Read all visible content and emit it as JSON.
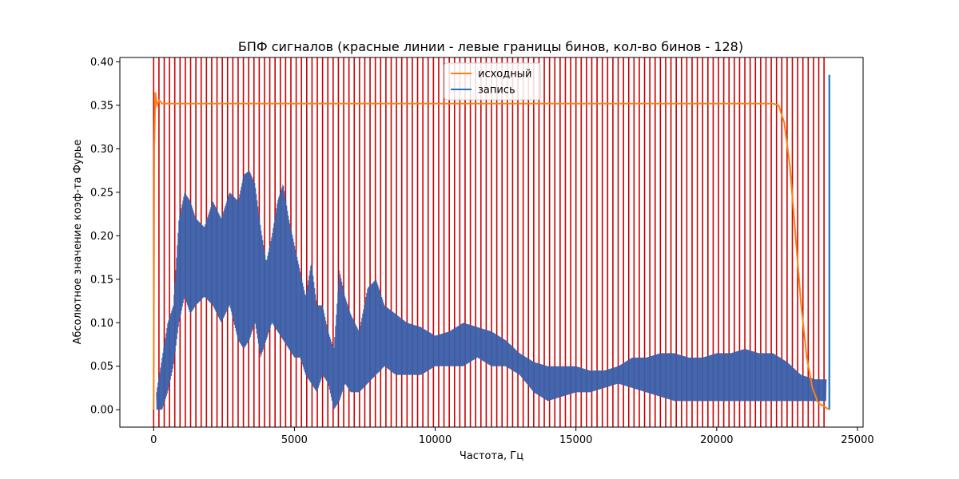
{
  "chart_data": {
    "type": "line",
    "title": "БПФ сигналов (красные линии - левые границы бинов, кол-во бинов - 128)",
    "xlabel": "Частота, Гц",
    "ylabel": "Абсолютное значение коэф-та Фурье",
    "xlim": [
      -1200,
      25200
    ],
    "ylim": [
      -0.02,
      0.405
    ],
    "x_ticks": [
      0,
      5000,
      10000,
      15000,
      20000,
      25000
    ],
    "x_tick_labels": [
      "0",
      "5000",
      "10000",
      "15000",
      "20000",
      "25000"
    ],
    "y_ticks": [
      0.0,
      0.05,
      0.1,
      0.15,
      0.2,
      0.25,
      0.3,
      0.35,
      0.4
    ],
    "y_tick_labels": [
      "0.00",
      "0.05",
      "0.10",
      "0.15",
      "0.20",
      "0.25",
      "0.30",
      "0.35",
      "0.40"
    ],
    "grid": false,
    "legend": {
      "placement": "top-center"
    },
    "bin_edges": {
      "color": "#cc0000",
      "count": 128,
      "first": 0,
      "step": 187.5,
      "last": 23812.5
    },
    "series": [
      {
        "name": "исходный",
        "color": "#ff7f0e",
        "points": [
          [
            0,
            0.0
          ],
          [
            20,
            0.3
          ],
          [
            60,
            0.365
          ],
          [
            120,
            0.35
          ],
          [
            200,
            0.356
          ],
          [
            300,
            0.352
          ],
          [
            22000,
            0.352
          ],
          [
            22200,
            0.35
          ],
          [
            22400,
            0.33
          ],
          [
            22600,
            0.28
          ],
          [
            22800,
            0.2
          ],
          [
            23000,
            0.12
          ],
          [
            23200,
            0.06
          ],
          [
            23400,
            0.025
          ],
          [
            23600,
            0.008
          ],
          [
            24000,
            0.0
          ]
        ]
      },
      {
        "name": "запись",
        "color": "#1f77b4",
        "envelope": [
          [
            100,
            0.0,
            0.02
          ],
          [
            300,
            0.0,
            0.06
          ],
          [
            500,
            0.02,
            0.1
          ],
          [
            700,
            0.05,
            0.12
          ],
          [
            900,
            0.1,
            0.22
          ],
          [
            1100,
            0.13,
            0.25
          ],
          [
            1300,
            0.11,
            0.24
          ],
          [
            1500,
            0.12,
            0.22
          ],
          [
            1800,
            0.13,
            0.21
          ],
          [
            2100,
            0.12,
            0.24
          ],
          [
            2400,
            0.1,
            0.22
          ],
          [
            2700,
            0.12,
            0.25
          ],
          [
            3000,
            0.08,
            0.24
          ],
          [
            3200,
            0.07,
            0.27
          ],
          [
            3400,
            0.08,
            0.275
          ],
          [
            3600,
            0.1,
            0.26
          ],
          [
            3800,
            0.06,
            0.21
          ],
          [
            4000,
            0.08,
            0.17
          ],
          [
            4200,
            0.1,
            0.2
          ],
          [
            4400,
            0.09,
            0.24
          ],
          [
            4600,
            0.08,
            0.26
          ],
          [
            4800,
            0.07,
            0.22
          ],
          [
            5000,
            0.06,
            0.19
          ],
          [
            5200,
            0.06,
            0.16
          ],
          [
            5400,
            0.04,
            0.13
          ],
          [
            5600,
            0.03,
            0.17
          ],
          [
            5800,
            0.02,
            0.12
          ],
          [
            6000,
            0.04,
            0.12
          ],
          [
            6200,
            0.03,
            0.09
          ],
          [
            6400,
            0.0,
            0.07
          ],
          [
            6600,
            0.01,
            0.16
          ],
          [
            6800,
            0.03,
            0.13
          ],
          [
            7000,
            0.02,
            0.11
          ],
          [
            7300,
            0.02,
            0.09
          ],
          [
            7600,
            0.03,
            0.14
          ],
          [
            7900,
            0.04,
            0.15
          ],
          [
            8200,
            0.05,
            0.12
          ],
          [
            8600,
            0.04,
            0.11
          ],
          [
            9000,
            0.04,
            0.1
          ],
          [
            9500,
            0.04,
            0.095
          ],
          [
            10000,
            0.05,
            0.085
          ],
          [
            10500,
            0.05,
            0.09
          ],
          [
            11000,
            0.05,
            0.1
          ],
          [
            11500,
            0.06,
            0.095
          ],
          [
            12000,
            0.05,
            0.09
          ],
          [
            12500,
            0.05,
            0.08
          ],
          [
            13000,
            0.04,
            0.065
          ],
          [
            13500,
            0.02,
            0.055
          ],
          [
            14000,
            0.01,
            0.05
          ],
          [
            14500,
            0.015,
            0.05
          ],
          [
            15000,
            0.02,
            0.05
          ],
          [
            15500,
            0.02,
            0.045
          ],
          [
            16000,
            0.025,
            0.045
          ],
          [
            16500,
            0.03,
            0.05
          ],
          [
            17000,
            0.025,
            0.06
          ],
          [
            17500,
            0.02,
            0.06
          ],
          [
            18000,
            0.015,
            0.065
          ],
          [
            18500,
            0.01,
            0.065
          ],
          [
            19000,
            0.01,
            0.06
          ],
          [
            19500,
            0.01,
            0.06
          ],
          [
            20000,
            0.01,
            0.065
          ],
          [
            20500,
            0.01,
            0.065
          ],
          [
            21000,
            0.01,
            0.07
          ],
          [
            21500,
            0.01,
            0.065
          ],
          [
            22000,
            0.01,
            0.065
          ],
          [
            22500,
            0.01,
            0.055
          ],
          [
            23000,
            0.01,
            0.04
          ],
          [
            23500,
            0.01,
            0.035
          ],
          [
            23900,
            0.01,
            0.035
          ]
        ],
        "spike": {
          "x": 24000,
          "y": 0.385
        }
      }
    ]
  }
}
